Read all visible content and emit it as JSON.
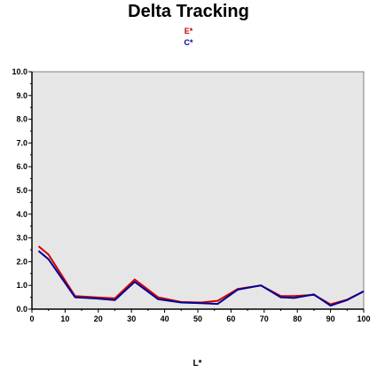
{
  "chart_data": {
    "type": "line",
    "title": "Delta Tracking",
    "xlabel": "L*",
    "ylabel": "",
    "xlim": [
      0,
      100
    ],
    "ylim": [
      0,
      10
    ],
    "x_ticks": [
      "0",
      "10",
      "20",
      "30",
      "40",
      "50",
      "60",
      "70",
      "80",
      "90",
      "100"
    ],
    "y_ticks": [
      "0.0",
      "1.0",
      "2.0",
      "3.0",
      "4.0",
      "5.0",
      "6.0",
      "7.0",
      "8.0",
      "9.0",
      "10.0"
    ],
    "grid": false,
    "legend_placement": "top-center",
    "background_color": "#e6e6e6",
    "series": [
      {
        "name": "E*",
        "color": "#cc0000",
        "x": [
          2,
          5,
          13,
          19,
          25,
          31,
          38,
          45,
          51,
          56,
          62,
          69,
          75,
          79,
          85,
          90,
          95,
          100
        ],
        "values": [
          2.65,
          2.3,
          0.55,
          0.5,
          0.45,
          1.25,
          0.5,
          0.3,
          0.28,
          0.35,
          0.85,
          1.0,
          0.55,
          0.55,
          0.6,
          0.2,
          0.4,
          0.75
        ]
      },
      {
        "name": "C*",
        "color": "#000099",
        "x": [
          2,
          5,
          13,
          19,
          25,
          31,
          38,
          45,
          51,
          56,
          62,
          69,
          75,
          79,
          85,
          90,
          95,
          100
        ],
        "values": [
          2.45,
          2.1,
          0.5,
          0.45,
          0.38,
          1.15,
          0.42,
          0.28,
          0.25,
          0.22,
          0.82,
          1.0,
          0.5,
          0.47,
          0.62,
          0.15,
          0.38,
          0.75
        ]
      }
    ]
  }
}
